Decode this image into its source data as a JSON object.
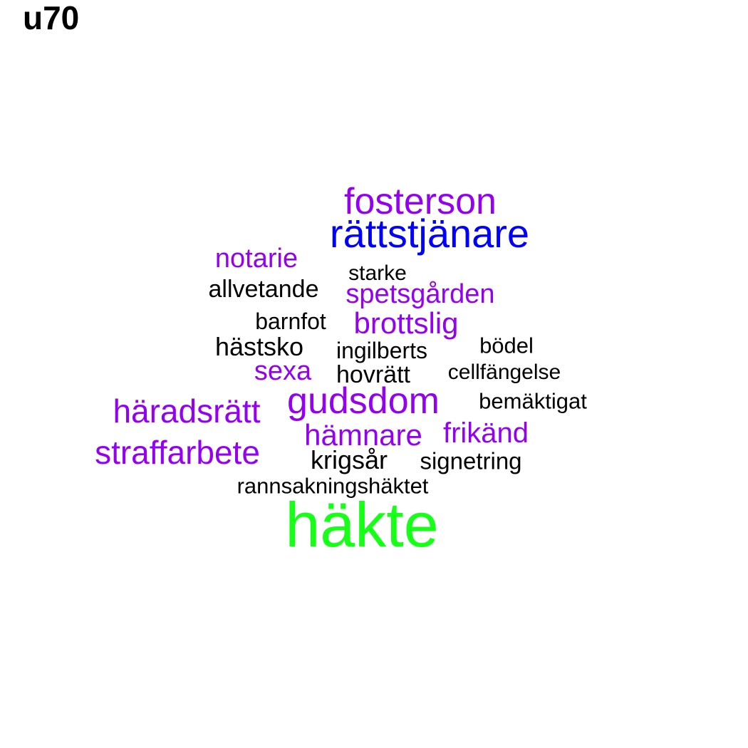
{
  "title": "u70",
  "colors": {
    "black": "#000000",
    "purple": "#9400f0",
    "blue": "#0000ff",
    "green": "#16ff16"
  },
  "words": [
    {
      "text": "fosterson",
      "color": "#9400f0"
    },
    {
      "text": "rättstjänare",
      "color": "#0000ff"
    },
    {
      "text": "notarie",
      "color": "#9400f0"
    },
    {
      "text": "starke",
      "color": "#000000"
    },
    {
      "text": "allvetande",
      "color": "#000000"
    },
    {
      "text": "spetsgården",
      "color": "#9400f0"
    },
    {
      "text": "barnfot",
      "color": "#000000"
    },
    {
      "text": "brottslig",
      "color": "#9400f0"
    },
    {
      "text": "hästsko",
      "color": "#000000"
    },
    {
      "text": "ingilberts",
      "color": "#000000"
    },
    {
      "text": "bödel",
      "color": "#000000"
    },
    {
      "text": "sexa",
      "color": "#9400f0"
    },
    {
      "text": "hovrätt",
      "color": "#000000"
    },
    {
      "text": "cellfängelse",
      "color": "#000000"
    },
    {
      "text": "häradsrätt",
      "color": "#9400f0"
    },
    {
      "text": "gudsdom",
      "color": "#9400f0"
    },
    {
      "text": "bemäktigat",
      "color": "#000000"
    },
    {
      "text": "hämnare",
      "color": "#9400f0"
    },
    {
      "text": "frikänd",
      "color": "#9400f0"
    },
    {
      "text": "straffarbete",
      "color": "#9400f0"
    },
    {
      "text": "krigsår",
      "color": "#000000"
    },
    {
      "text": "signetring",
      "color": "#000000"
    },
    {
      "text": "rannsakningshäktet",
      "color": "#000000"
    },
    {
      "text": "häkte",
      "color": "#16ff16"
    }
  ]
}
